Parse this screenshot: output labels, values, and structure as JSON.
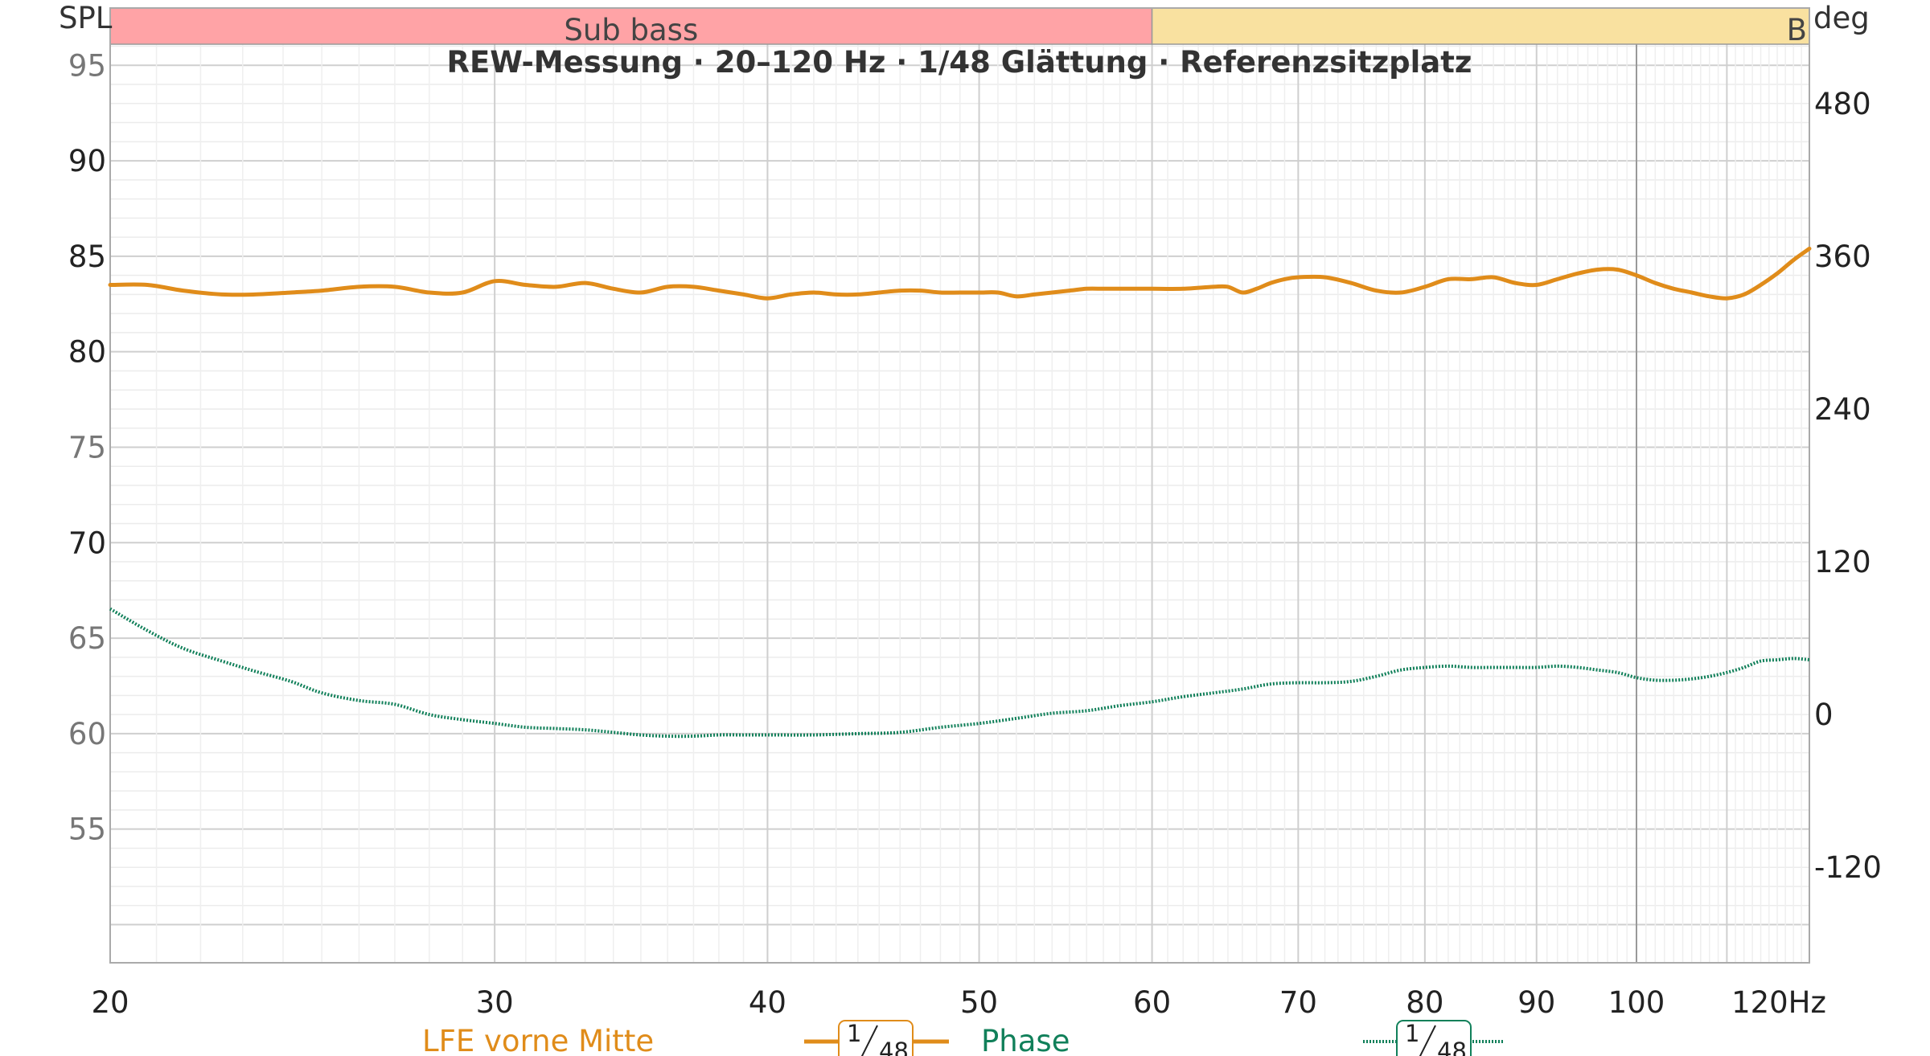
{
  "chart_data": {
    "type": "line",
    "title": "REW-Messung · 20–120 Hz · 1/48 Glättung · Referenzsitzplatz",
    "left_axis": {
      "label": "SPL",
      "ylim": [
        48,
        98
      ],
      "ticks": [
        "55",
        "60",
        "65",
        "70",
        "75",
        "80",
        "85",
        "90",
        "95"
      ],
      "minor_ticks": [
        "55",
        "60",
        "65",
        "75",
        "95"
      ]
    },
    "right_axis": {
      "label": "deg",
      "ylim": [
        -195,
        555
      ],
      "ticks": [
        "-120",
        "0",
        "120",
        "240",
        "360",
        "480"
      ]
    },
    "x_axis": {
      "unit": "Hz",
      "scale": "log",
      "xlim": [
        20,
        120
      ],
      "ticks": [
        "20",
        "30",
        "40",
        "50",
        "60",
        "70",
        "80",
        "90",
        "100",
        "120"
      ]
    },
    "bands": [
      {
        "label": "Sub bass",
        "from": 20,
        "to": 60,
        "color": "#ffa3a6"
      },
      {
        "label": "B",
        "from": 60,
        "to": 120,
        "color": "#f9e1a0"
      }
    ],
    "grid": true,
    "series": [
      {
        "name": "LFE vorne Mitte",
        "axis": "left",
        "color": "#e08c1a",
        "style": "solid",
        "smoothing": {
          "num": "1",
          "den": "48"
        },
        "x": [
          20,
          20.8,
          21.6,
          22.5,
          23.3,
          24.2,
          25,
          26,
          27,
          28,
          29,
          30,
          31,
          32,
          33,
          34,
          35,
          36,
          37,
          38,
          39,
          40,
          41,
          42,
          43,
          44,
          45,
          46,
          47,
          48,
          49,
          50,
          51,
          52,
          53,
          54,
          55,
          56,
          57,
          58,
          59,
          60,
          62,
          64,
          65,
          66,
          67,
          68,
          69,
          70,
          72,
          74,
          76,
          78,
          80,
          82,
          84,
          86,
          88,
          90,
          92,
          94,
          96,
          98,
          100,
          102,
          104,
          106,
          108,
          110,
          112,
          114,
          116,
          118,
          120
        ],
        "y": [
          83.5,
          83.5,
          83.2,
          83.0,
          83.0,
          83.1,
          83.2,
          83.4,
          83.4,
          83.1,
          83.1,
          83.7,
          83.5,
          83.4,
          83.6,
          83.3,
          83.1,
          83.4,
          83.4,
          83.2,
          83.0,
          82.8,
          83.0,
          83.1,
          83.0,
          83.0,
          83.1,
          83.2,
          83.2,
          83.1,
          83.1,
          83.1,
          83.1,
          82.9,
          83.0,
          83.1,
          83.2,
          83.3,
          83.3,
          83.3,
          83.3,
          83.3,
          83.3,
          83.4,
          83.4,
          83.1,
          83.3,
          83.6,
          83.8,
          83.9,
          83.9,
          83.6,
          83.2,
          83.1,
          83.4,
          83.8,
          83.8,
          83.9,
          83.6,
          83.5,
          83.8,
          84.1,
          84.3,
          84.3,
          84.0,
          83.6,
          83.3,
          83.1,
          82.9,
          82.8,
          83.0,
          83.5,
          84.1,
          84.8,
          85.4
        ]
      },
      {
        "name": "Phase",
        "axis": "right",
        "color": "#11805a",
        "style": "dotted",
        "smoothing": {
          "num": "1",
          "den": "48"
        },
        "x": [
          20,
          20.8,
          21.6,
          22.5,
          23.3,
          24.2,
          25,
          26,
          27,
          28,
          29,
          30,
          31,
          32,
          33,
          34,
          35,
          36,
          37,
          38,
          39,
          40,
          42,
          44,
          46,
          48,
          50,
          52,
          54,
          56,
          58,
          60,
          62,
          64,
          66,
          68,
          70,
          72,
          74,
          76,
          78,
          80,
          82,
          84,
          86,
          88,
          90,
          92,
          94,
          96,
          98,
          100,
          102,
          104,
          106,
          108,
          110,
          112,
          114,
          116,
          118,
          120
        ],
        "y": [
          83,
          66,
          52,
          42,
          34,
          26,
          17,
          11,
          8,
          0,
          -4,
          -7,
          -10,
          -11,
          -12,
          -14,
          -16,
          -17,
          -17,
          -16,
          -16,
          -16,
          -16,
          -15,
          -14,
          -10,
          -7,
          -3,
          1,
          3,
          7,
          10,
          14,
          17,
          20,
          24,
          25,
          25,
          26,
          30,
          35,
          37,
          38,
          37,
          37,
          37,
          37,
          38,
          37,
          35,
          33,
          29,
          27,
          27,
          28,
          30,
          33,
          37,
          42,
          43,
          44,
          43
        ]
      }
    ]
  }
}
